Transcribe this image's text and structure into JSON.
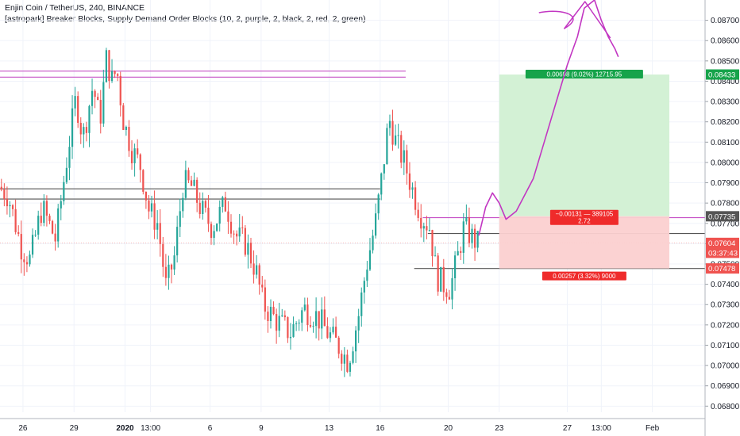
{
  "header": {
    "symbol_line": "Enjin Coin / TetherUS, 240, BINANCE",
    "indicator_line": "[astropark] Breaker Blocks, Supply Demand Order Blocks (10, 2, purple, 2, black, 2, red, 2, green)"
  },
  "chart_data": {
    "type": "candlestick",
    "title": "Enjin Coin / TetherUS, 240, BINANCE",
    "y_ticks": [
      "0.08700",
      "0.08600",
      "0.08500",
      "0.08400",
      "0.08300",
      "0.08200",
      "0.08100",
      "0.08000",
      "0.07900",
      "0.07800",
      "0.07700",
      "0.07600",
      "0.07500",
      "0.07400",
      "0.07300",
      "0.07200",
      "0.07100",
      "0.07000",
      "0.06900",
      "0.06800"
    ],
    "ylim": [
      0.0677,
      0.088
    ],
    "x_ticks": [
      {
        "label": "26",
        "day": 0
      },
      {
        "label": "29",
        "day": 3
      },
      {
        "label": "2020",
        "day": 6
      },
      {
        "label": "13:00",
        "day": 7.5
      },
      {
        "label": "6",
        "day": 11
      },
      {
        "label": "9",
        "day": 14
      },
      {
        "label": "13",
        "day": 18
      },
      {
        "label": "16",
        "day": 21
      },
      {
        "label": "20",
        "day": 25
      },
      {
        "label": "23",
        "day": 28
      },
      {
        "label": "27",
        "day": 32
      },
      {
        "label": "13:00",
        "day": 34
      },
      {
        "label": "Feb",
        "day": 37
      }
    ],
    "xlim": [
      -1.35,
      40.1
    ],
    "candle_days": [
      -1.35,
      26.8
    ],
    "price_path": [
      [
        -1.35,
        0.0788
      ],
      [
        -0.8,
        0.0784
      ],
      [
        0.0,
        0.0758
      ],
      [
        0.5,
        0.0752
      ],
      [
        1.2,
        0.0778
      ],
      [
        2.0,
        0.0762
      ],
      [
        2.8,
        0.081
      ],
      [
        3.2,
        0.0832
      ],
      [
        3.6,
        0.0812
      ],
      [
        4.2,
        0.0838
      ],
      [
        4.6,
        0.082
      ],
      [
        5.0,
        0.0852
      ],
      [
        5.3,
        0.084
      ],
      [
        5.6,
        0.0846
      ],
      [
        6.0,
        0.082
      ],
      [
        6.5,
        0.0806
      ],
      [
        7.0,
        0.0798
      ],
      [
        7.5,
        0.0776
      ],
      [
        8.0,
        0.077
      ],
      [
        8.5,
        0.0738
      ],
      [
        9.0,
        0.0754
      ],
      [
        9.5,
        0.079
      ],
      [
        10.0,
        0.0788
      ],
      [
        10.6,
        0.0776
      ],
      [
        11.2,
        0.0768
      ],
      [
        12.0,
        0.078
      ],
      [
        12.6,
        0.0764
      ],
      [
        13.2,
        0.076
      ],
      [
        13.8,
        0.0746
      ],
      [
        14.2,
        0.073
      ],
      [
        15.0,
        0.0722
      ],
      [
        15.8,
        0.0716
      ],
      [
        16.6,
        0.0728
      ],
      [
        17.4,
        0.0724
      ],
      [
        18.0,
        0.0716
      ],
      [
        18.6,
        0.071
      ],
      [
        19.2,
        0.0702
      ],
      [
        19.8,
        0.0724
      ],
      [
        20.3,
        0.075
      ],
      [
        20.8,
        0.077
      ],
      [
        21.2,
        0.0794
      ],
      [
        21.6,
        0.0822
      ],
      [
        22.0,
        0.081
      ],
      [
        22.5,
        0.08
      ],
      [
        23.0,
        0.0786
      ],
      [
        23.5,
        0.0774
      ],
      [
        24.0,
        0.0768
      ],
      [
        24.4,
        0.0744
      ],
      [
        24.8,
        0.074
      ],
      [
        25.2,
        0.0738
      ],
      [
        25.6,
        0.0752
      ],
      [
        26.0,
        0.0768
      ],
      [
        26.4,
        0.0764
      ],
      [
        26.8,
        0.076
      ]
    ],
    "horizontal_lines": [
      {
        "name": "purple-level-upper",
        "color": "#c652c6",
        "price": 0.0845,
        "day_from": -1.35,
        "day_to": 22.5
      },
      {
        "name": "purple-level-lower",
        "color": "#c652c6",
        "price": 0.0842,
        "day_from": -1.35,
        "day_to": 22.5
      },
      {
        "name": "black-level-upper",
        "color": "#555555",
        "price": 0.0787,
        "day_from": -1.35,
        "day_to": 21.0
      },
      {
        "name": "black-level-lower",
        "color": "#555555",
        "price": 0.0782,
        "day_from": -1.35,
        "day_to": 21.0
      },
      {
        "name": "purple-level-entry",
        "color": "#c652c6",
        "price": 0.07728,
        "day_from": 23.5,
        "day_to": 40.1
      },
      {
        "name": "dark-level-current",
        "color": "#555555",
        "price": 0.0765,
        "day_from": 23.8,
        "day_to": 40.1
      },
      {
        "name": "dark-level-stop",
        "color": "#555555",
        "price": 0.07478,
        "day_from": 23.0,
        "day_to": 40.1
      },
      {
        "name": "pink-level-last",
        "color": "#f7a4a4",
        "price": 0.07604,
        "day_from": -1.35,
        "day_to": 40.1
      }
    ],
    "position": {
      "day_from": 28.0,
      "day_to": 38.0,
      "entry": 0.07735,
      "target": 0.08433,
      "stop": 0.07478,
      "target_label": "0.00698 (9.02%) 12715.95",
      "center_label_1": "−0.00131 — 389105",
      "center_label_2": "2.72",
      "stop_label": "0.00257 (3.32%) 9000",
      "profit_color": "#d1f0d3",
      "loss_color": "#fbd0d0"
    },
    "drawing_path": [
      [
        26.8,
        0.0764
      ],
      [
        27.2,
        0.0778
      ],
      [
        27.6,
        0.0785
      ],
      [
        28.0,
        0.078
      ],
      [
        28.4,
        0.0772
      ],
      [
        29.0,
        0.0776
      ],
      [
        30.0,
        0.0792
      ],
      [
        31.0,
        0.082
      ],
      [
        32.0,
        0.0848
      ],
      [
        32.6,
        0.0862
      ],
      [
        33.0,
        0.0876
      ],
      [
        33.6,
        0.088
      ],
      [
        34.0,
        0.087
      ],
      [
        34.4,
        0.0862
      ],
      [
        34.8,
        0.0856
      ],
      [
        35.0,
        0.0852
      ]
    ],
    "axis_price_labels": [
      {
        "name": "target-price-tag",
        "text": "0.08433",
        "price": 0.08433,
        "color": "#16a34a"
      },
      {
        "name": "entry-price-tag",
        "text": "0.07735",
        "price": 0.07735,
        "color": "#555555"
      },
      {
        "name": "last-price-tag",
        "text": "0.07604",
        "price": 0.07604,
        "color": "#ef5350"
      },
      {
        "name": "countdown-tag",
        "text": "03:37:43",
        "price": 0.07555,
        "color": "#ef5350"
      },
      {
        "name": "stop-price-tag",
        "text": "0.07478",
        "price": 0.07478,
        "color": "#ef5350"
      }
    ]
  }
}
